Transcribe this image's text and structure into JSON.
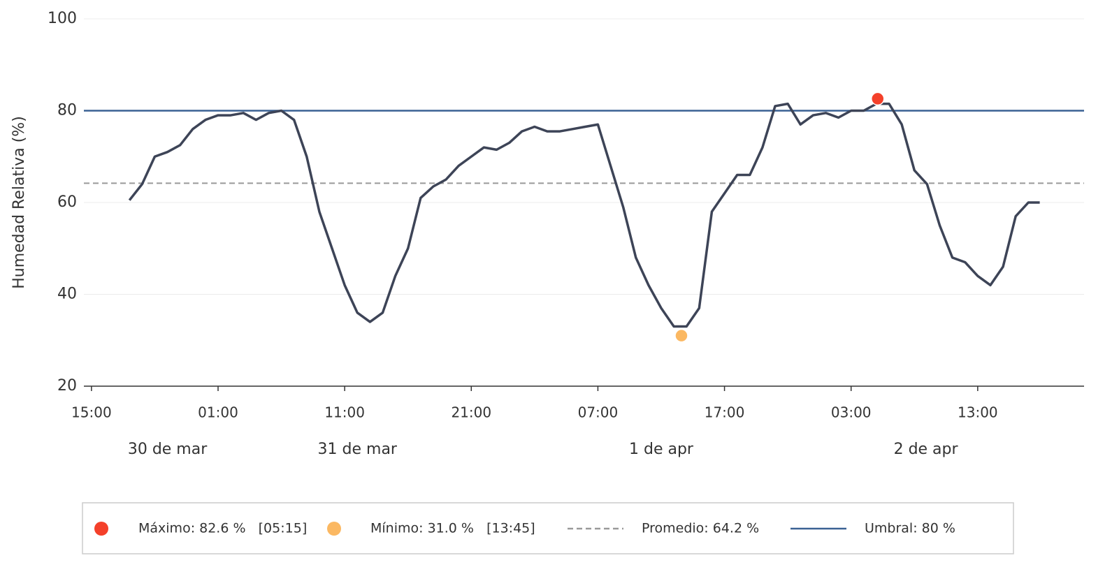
{
  "chart_data": {
    "type": "line",
    "y_label": "Humedad Relativa (%)",
    "x": [
      3,
      4,
      5,
      6,
      7,
      8,
      9,
      10,
      11,
      12,
      13,
      14,
      15,
      16,
      17,
      18,
      19,
      20,
      21,
      22,
      23,
      24,
      25,
      26,
      27,
      28,
      29,
      30,
      31,
      32,
      33,
      34,
      35,
      36,
      37,
      38,
      39,
      40,
      41,
      42,
      43,
      44,
      45,
      46,
      47,
      48,
      49,
      50,
      51,
      52,
      53,
      54,
      55,
      56,
      57,
      58,
      59,
      60,
      61,
      62,
      63,
      64,
      65,
      66,
      67,
      68,
      69,
      70,
      71,
      72,
      73,
      74,
      74.9
    ],
    "series": [
      {
        "name": "Humedad Relativa (%)",
        "color": "#3d4457",
        "values": [
          60.5,
          64,
          70,
          71,
          72.5,
          76,
          78,
          79,
          79,
          79.5,
          78,
          79.5,
          80,
          78,
          70,
          58,
          50,
          42,
          36,
          34,
          36,
          44,
          50,
          61,
          63.5,
          65,
          68,
          70,
          72,
          71.5,
          73,
          75.5,
          76.5,
          75.5,
          75.5,
          76,
          76.5,
          77,
          68,
          59,
          48,
          42,
          37,
          33,
          33,
          37,
          58,
          62,
          66,
          66,
          72,
          81,
          81.5,
          77,
          79,
          79.5,
          78.5,
          80,
          80,
          81.5,
          81.5,
          77,
          67,
          64,
          55,
          48,
          47,
          44,
          42,
          46,
          57,
          60,
          60
        ]
      }
    ],
    "xlim": [
      -0.6,
      78.4
    ],
    "xticks": [
      {
        "value": 0,
        "label": "15:00"
      },
      {
        "value": 10,
        "label": "01:00"
      },
      {
        "value": 20,
        "label": "11:00"
      },
      {
        "value": 30,
        "label": "21:00"
      },
      {
        "value": 40,
        "label": "07:00"
      },
      {
        "value": 50,
        "label": "17:00"
      },
      {
        "value": 60,
        "label": "03:00"
      },
      {
        "value": 70,
        "label": "13:00"
      }
    ],
    "date_ticks": [
      {
        "value": 6,
        "label": "30 de mar"
      },
      {
        "value": 21,
        "label": "31 de mar"
      },
      {
        "value": 45,
        "label": "1 de apr"
      },
      {
        "value": 65.9,
        "label": "2 de apr"
      }
    ],
    "ylim": [
      20,
      100
    ],
    "yticks": [
      20,
      40,
      60,
      80,
      100
    ],
    "grid": true,
    "markers": [
      {
        "name": "Máximo: 82.6 %   [05:15]",
        "x": 62.1,
        "y": 82.6,
        "color": "#f4402a"
      },
      {
        "name": "Mínimo: 31.0 %   [13:45]",
        "x": 46.6,
        "y": 31.0,
        "color": "#fbb862"
      }
    ],
    "hlines": [
      {
        "name": "Promedio: 64.2 %",
        "value": 64.2,
        "style": "dashed",
        "color": "#999999"
      },
      {
        "name": "Umbral: 80 %",
        "value": 80,
        "style": "solid",
        "color": "#3a6193"
      }
    ]
  }
}
